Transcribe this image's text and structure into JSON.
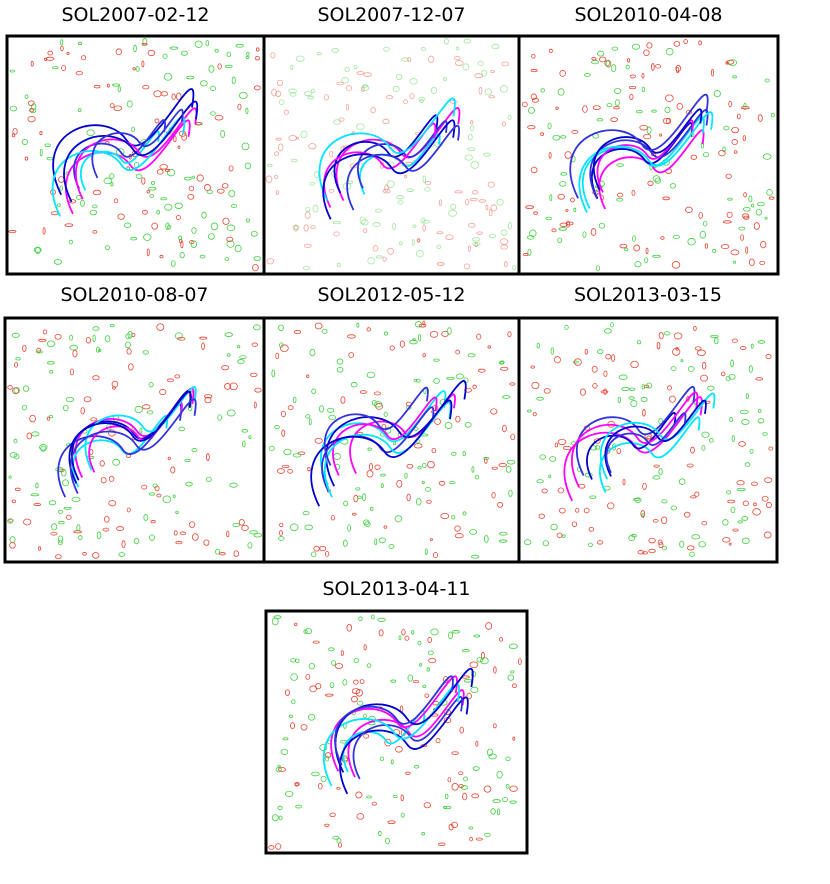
{
  "panels": [
    {
      "title": "SOL2007-02-12"
    },
    {
      "title": "SOL2007-12-07"
    },
    {
      "title": "SOL2010-04-08"
    },
    {
      "title": "SOL2010-08-07"
    },
    {
      "title": "SOL2012-05-12"
    },
    {
      "title": "SOL2013-03-15"
    },
    {
      "title": "SOL2013-04-11"
    }
  ]
}
